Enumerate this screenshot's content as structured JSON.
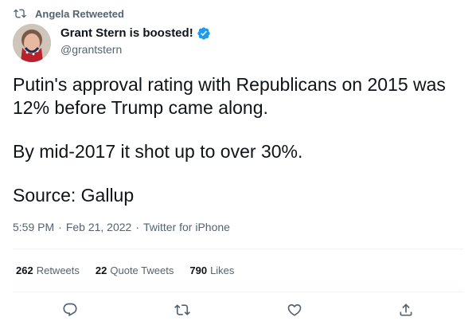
{
  "retweet": {
    "label": "Angela Retweeted",
    "icon": "retweet-icon"
  },
  "author": {
    "display_name": "Grant Stern is boosted!",
    "handle": "@grantstern",
    "verified_icon": "verified-badge-icon"
  },
  "tweet": {
    "paragraphs": [
      "Putin's approval rating with Republicans on 2015 was 12% before Trump came along.",
      "By mid-2017 it shot up to over 30%.",
      "Source: Gallup"
    ]
  },
  "meta": {
    "time": "5:59 PM",
    "separator": "·",
    "date": "Feb 21, 2022",
    "source": "Twitter for iPhone"
  },
  "stats": {
    "retweets": {
      "count": "262",
      "label": "Retweets"
    },
    "quote_tweets": {
      "count": "22",
      "label": "Quote Tweets"
    },
    "likes": {
      "count": "790",
      "label": "Likes"
    }
  },
  "actions": [
    "reply-icon",
    "retweet-icon",
    "like-icon",
    "share-icon"
  ],
  "colors": {
    "accent": "#1d9bf0",
    "secondary_text": "#536471",
    "primary_text": "#0f1419"
  }
}
